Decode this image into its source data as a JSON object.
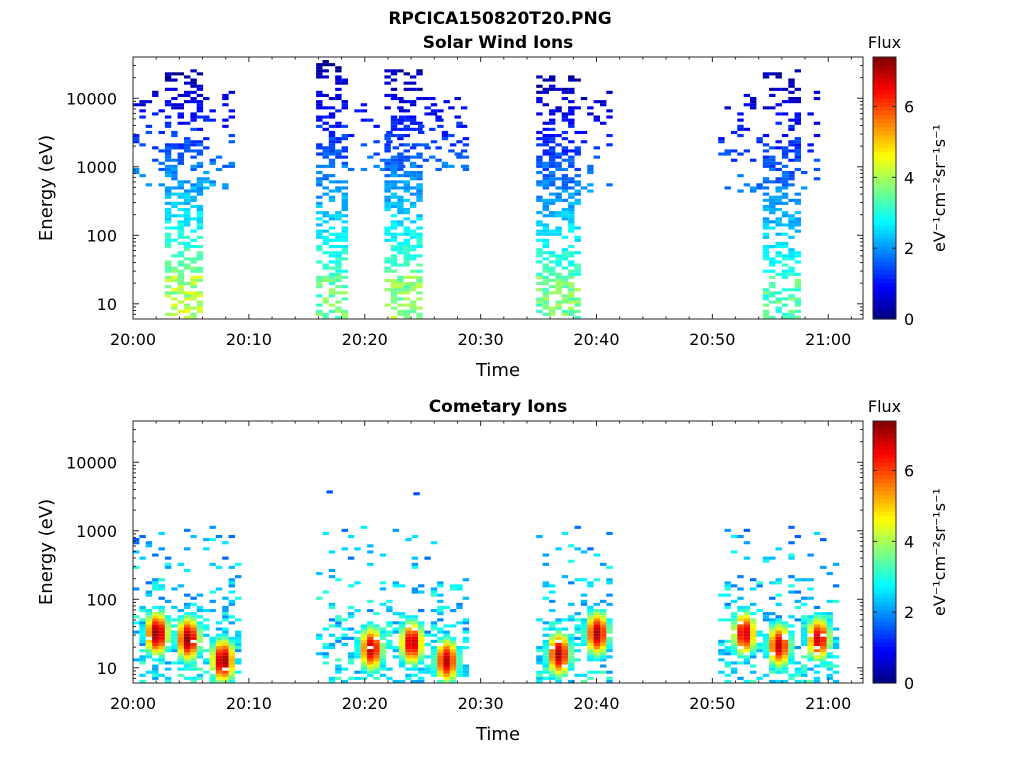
{
  "figure": {
    "title": "RPCICA150820T20.PNG"
  },
  "chart_data": [
    {
      "type": "heatmap",
      "title": "Solar Wind Ions",
      "xlabel": "Time",
      "ylabel": "Energy (eV)",
      "x_ticks": [
        "20:00",
        "20:10",
        "20:20",
        "20:30",
        "20:40",
        "20:50",
        "21:00"
      ],
      "xlim_minutes_after_2000": [
        0,
        63
      ],
      "y_scale": "log",
      "ylim": [
        6,
        40000
      ],
      "y_ticks": [
        10,
        100,
        1000,
        10000
      ],
      "y_tick_labels": [
        "10",
        "100",
        "1000",
        "10000"
      ],
      "colorbar": {
        "label": "Flux",
        "unit_label": "eV⁻¹cm⁻²sr⁻¹s⁻¹",
        "range": [
          0,
          7.4
        ],
        "ticks": [
          0,
          2,
          4,
          6
        ],
        "tick_labels": [
          "0",
          "2",
          "4",
          "6"
        ],
        "colormap": "jet"
      },
      "bursts": [
        {
          "t_start": 0.0,
          "t_end": 8.5,
          "core_start": 2.7,
          "core_end": 6.0,
          "e_min": 6,
          "e_max": 25000,
          "peak_energy": 15,
          "peak_value": 4.3,
          "sparse_upper": true
        },
        {
          "t_start": 15.8,
          "t_end": 28.5,
          "core_start": 15.8,
          "core_end": 18.4,
          "e_min": 6,
          "e_max": 35000,
          "peak_energy": 15,
          "peak_value": 3.8,
          "sparse_upper": false
        },
        {
          "t_start": 21.7,
          "t_end": 28.5,
          "core_start": 21.7,
          "core_end": 25.0,
          "e_min": 6,
          "e_max": 25000,
          "peak_energy": 15,
          "peak_value": 4.1,
          "sparse_upper": false
        },
        {
          "t_start": 34.8,
          "t_end": 41.0,
          "core_start": 34.8,
          "core_end": 38.2,
          "e_min": 6,
          "e_max": 20000,
          "peak_energy": 15,
          "peak_value": 3.9,
          "sparse_upper": true
        },
        {
          "t_start": 50.5,
          "t_end": 59.0,
          "core_start": 54.3,
          "core_end": 57.3,
          "e_min": 6,
          "e_max": 25000,
          "peak_energy": 15,
          "peak_value": 3.6,
          "sparse_upper": true
        }
      ]
    },
    {
      "type": "heatmap",
      "title": "Cometary Ions",
      "xlabel": "Time",
      "ylabel": "Energy (eV)",
      "x_ticks": [
        "20:00",
        "20:10",
        "20:20",
        "20:30",
        "20:40",
        "20:50",
        "21:00"
      ],
      "xlim_minutes_after_2000": [
        0,
        63
      ],
      "y_scale": "log",
      "ylim": [
        6,
        40000
      ],
      "y_ticks": [
        10,
        100,
        1000,
        10000
      ],
      "y_tick_labels": [
        "10",
        "100",
        "1000",
        "10000"
      ],
      "colorbar": {
        "label": "Flux",
        "unit_label": "eV⁻¹cm⁻²sr⁻¹s⁻¹",
        "range": [
          0,
          7.4
        ],
        "ticks": [
          0,
          2,
          4,
          6
        ],
        "tick_labels": [
          "0",
          "2",
          "4",
          "6"
        ],
        "colormap": "jet"
      },
      "bursts": [
        {
          "t_start": 0.0,
          "t_end": 9.0,
          "peaks": [
            1.8,
            4.5,
            7.5
          ],
          "peak_energies": [
            30,
            25,
            12
          ],
          "peak_value": 7.3,
          "e_max": 1200
        },
        {
          "t_start": 15.8,
          "t_end": 28.5,
          "peaks": [
            20.3,
            23.8,
            26.8
          ],
          "peak_energies": [
            18,
            22,
            12
          ],
          "peak_value": 7.0,
          "e_max": 1100
        },
        {
          "t_start": 34.8,
          "t_end": 41.0,
          "peaks": [
            36.5,
            39.8
          ],
          "peak_energies": [
            15,
            30
          ],
          "peak_value": 7.1,
          "e_max": 1200
        },
        {
          "t_start": 50.5,
          "t_end": 60.5,
          "peaks": [
            52.5,
            55.5,
            58.9
          ],
          "peak_energies": [
            30,
            20,
            25
          ],
          "peak_value": 6.9,
          "e_max": 1200
        }
      ],
      "isolated_points": [
        {
          "t": 16.7,
          "e": 3500,
          "value": 1.5
        },
        {
          "t": 24.2,
          "e": 3300,
          "value": 1.5
        }
      ]
    }
  ]
}
